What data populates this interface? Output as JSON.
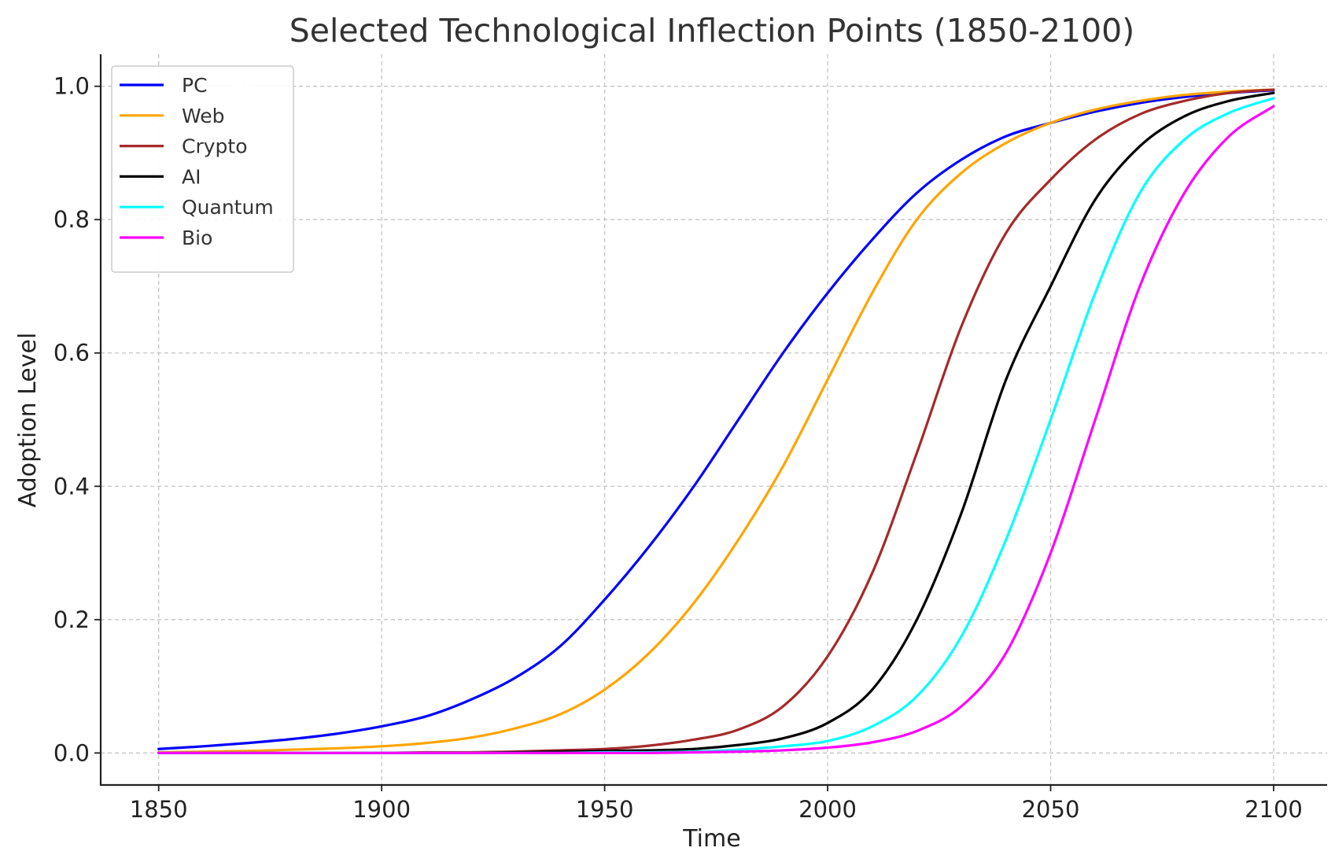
{
  "chart_data": {
    "type": "line",
    "title": "Selected Technological Inflection Points (1850-2100)",
    "xlabel": "Time",
    "ylabel": "Adoption Level",
    "xlim": [
      1837,
      2112
    ],
    "ylim": [
      -0.048,
      1.048
    ],
    "xticks": [
      1850,
      1900,
      1950,
      2000,
      2050,
      2100
    ],
    "yticks": [
      0.0,
      0.2,
      0.4,
      0.6,
      0.8,
      1.0
    ],
    "xtick_labels": [
      "1850",
      "1900",
      "1950",
      "2000",
      "2050",
      "2100"
    ],
    "ytick_labels": [
      "0.0",
      "0.2",
      "0.4",
      "0.6",
      "0.8",
      "1.0"
    ],
    "grid": true,
    "legend_position": "top-left",
    "x": [
      1850,
      1860,
      1870,
      1880,
      1890,
      1900,
      1910,
      1920,
      1930,
      1940,
      1950,
      1960,
      1970,
      1980,
      1990,
      2000,
      2010,
      2020,
      2030,
      2040,
      2050,
      2060,
      2070,
      2080,
      2090,
      2100
    ],
    "series": [
      {
        "name": "PC",
        "color": "#0000ff",
        "values": [
          0.006,
          0.01,
          0.015,
          0.021,
          0.029,
          0.04,
          0.055,
          0.08,
          0.113,
          0.16,
          0.23,
          0.31,
          0.4,
          0.5,
          0.6,
          0.69,
          0.77,
          0.84,
          0.89,
          0.925,
          0.945,
          0.962,
          0.975,
          0.984,
          0.99,
          0.994
        ]
      },
      {
        "name": "Web",
        "color": "#ffa500",
        "values": [
          0.001,
          0.002,
          0.003,
          0.005,
          0.007,
          0.01,
          0.015,
          0.023,
          0.037,
          0.058,
          0.095,
          0.15,
          0.225,
          0.32,
          0.43,
          0.56,
          0.69,
          0.8,
          0.87,
          0.915,
          0.945,
          0.965,
          0.978,
          0.987,
          0.992,
          0.995
        ]
      },
      {
        "name": "Crypto",
        "color": "#a52a2a",
        "values": [
          0.0,
          0.0,
          0.0,
          0.0,
          0.0,
          0.0,
          0.001,
          0.001,
          0.002,
          0.004,
          0.006,
          0.011,
          0.02,
          0.035,
          0.07,
          0.145,
          0.27,
          0.45,
          0.64,
          0.78,
          0.86,
          0.92,
          0.958,
          0.978,
          0.99,
          0.995
        ]
      },
      {
        "name": "AI",
        "color": "#000000",
        "values": [
          0.0,
          0.0,
          0.0,
          0.0,
          0.0,
          0.0,
          0.0,
          0.0,
          0.001,
          0.002,
          0.003,
          0.004,
          0.006,
          0.012,
          0.022,
          0.045,
          0.095,
          0.2,
          0.36,
          0.56,
          0.7,
          0.83,
          0.91,
          0.955,
          0.978,
          0.99
        ]
      },
      {
        "name": "Quantum",
        "color": "#00ffff",
        "values": [
          0.0,
          0.0,
          0.0,
          0.0,
          0.0,
          0.0,
          0.0,
          0.0,
          0.0,
          0.0,
          0.001,
          0.001,
          0.002,
          0.005,
          0.01,
          0.018,
          0.04,
          0.085,
          0.175,
          0.32,
          0.5,
          0.69,
          0.84,
          0.92,
          0.96,
          0.982
        ]
      },
      {
        "name": "Bio",
        "color": "#ff00ff",
        "values": [
          0.0,
          0.0,
          0.0,
          0.0,
          0.0,
          0.0,
          0.0,
          0.0,
          0.0,
          0.0,
          0.0,
          0.0,
          0.001,
          0.002,
          0.004,
          0.008,
          0.016,
          0.033,
          0.07,
          0.15,
          0.3,
          0.5,
          0.7,
          0.84,
          0.925,
          0.97
        ]
      }
    ]
  }
}
